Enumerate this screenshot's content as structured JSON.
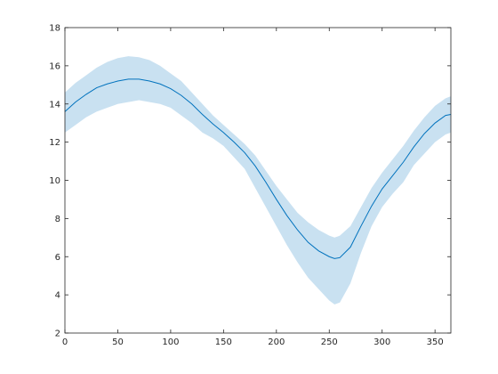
{
  "chart_data": {
    "type": "area",
    "title": "",
    "xlabel": "",
    "ylabel": "",
    "xlim": [
      0,
      365
    ],
    "ylim": [
      2,
      18
    ],
    "xticks": [
      0,
      50,
      100,
      150,
      200,
      250,
      300,
      350
    ],
    "yticks": [
      2,
      4,
      6,
      8,
      10,
      12,
      14,
      16,
      18
    ],
    "grid": false,
    "legend": "none",
    "colors": {
      "line": "#0072BD",
      "band": "#C9E1F1",
      "axes": "#262626"
    },
    "series": [
      {
        "role": "mean",
        "x": [
          0,
          10,
          20,
          30,
          40,
          50,
          60,
          70,
          80,
          90,
          100,
          110,
          120,
          130,
          140,
          150,
          160,
          170,
          180,
          190,
          200,
          210,
          220,
          230,
          240,
          250,
          255,
          260,
          270,
          280,
          290,
          300,
          310,
          320,
          330,
          340,
          350,
          360,
          365
        ],
        "y": [
          13.6,
          14.1,
          14.5,
          14.85,
          15.05,
          15.2,
          15.3,
          15.3,
          15.2,
          15.05,
          14.8,
          14.45,
          14.0,
          13.45,
          12.95,
          12.5,
          12.0,
          11.45,
          10.75,
          9.9,
          9.0,
          8.15,
          7.4,
          6.75,
          6.3,
          6.0,
          5.9,
          5.95,
          6.5,
          7.6,
          8.65,
          9.55,
          10.25,
          10.95,
          11.75,
          12.45,
          13.0,
          13.4,
          13.45
        ]
      },
      {
        "role": "band-upper",
        "x": [
          0,
          10,
          20,
          30,
          40,
          50,
          60,
          70,
          80,
          90,
          100,
          110,
          120,
          130,
          140,
          150,
          160,
          170,
          180,
          190,
          200,
          210,
          220,
          230,
          240,
          250,
          255,
          260,
          270,
          280,
          290,
          300,
          310,
          320,
          330,
          340,
          350,
          360,
          365
        ],
        "y": [
          14.6,
          15.1,
          15.5,
          15.9,
          16.2,
          16.4,
          16.5,
          16.45,
          16.3,
          16.0,
          15.6,
          15.2,
          14.6,
          14.0,
          13.4,
          12.9,
          12.4,
          11.9,
          11.3,
          10.5,
          9.7,
          9.0,
          8.3,
          7.8,
          7.4,
          7.1,
          7.0,
          7.1,
          7.6,
          8.6,
          9.6,
          10.4,
          11.1,
          11.8,
          12.6,
          13.3,
          13.9,
          14.3,
          14.4
        ]
      },
      {
        "role": "band-lower",
        "x": [
          0,
          10,
          20,
          30,
          40,
          50,
          60,
          70,
          80,
          90,
          100,
          110,
          120,
          130,
          140,
          150,
          160,
          170,
          180,
          190,
          200,
          210,
          220,
          230,
          240,
          250,
          255,
          260,
          270,
          280,
          290,
          300,
          310,
          320,
          330,
          340,
          350,
          360,
          365
        ],
        "y": [
          12.5,
          12.9,
          13.3,
          13.6,
          13.8,
          14.0,
          14.1,
          14.2,
          14.1,
          14.0,
          13.8,
          13.4,
          13.0,
          12.5,
          12.2,
          11.8,
          11.2,
          10.6,
          9.6,
          8.6,
          7.6,
          6.6,
          5.7,
          4.9,
          4.3,
          3.7,
          3.5,
          3.6,
          4.6,
          6.2,
          7.6,
          8.6,
          9.3,
          9.9,
          10.8,
          11.4,
          12.0,
          12.4,
          12.5
        ]
      }
    ]
  }
}
